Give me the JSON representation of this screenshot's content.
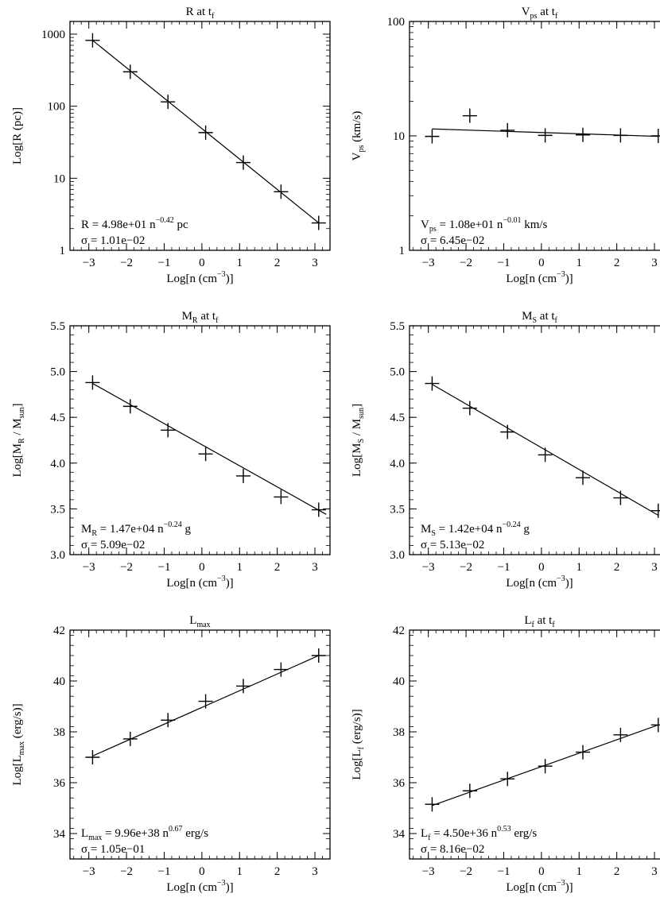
{
  "chart_data": [
    {
      "type": "scatter",
      "title": {
        "main": "R at t",
        "sub": "f"
      },
      "xlabel": {
        "pre": "Log[n (cm",
        "sup": "−3",
        "post": ")]"
      },
      "ylabel": {
        "pre": "Log[R (pc)]"
      },
      "yscale": "log",
      "xlim": [
        -3.5,
        3.4
      ],
      "ylim": [
        1,
        1500
      ],
      "xticks": [
        -3,
        -2,
        -1,
        0,
        1,
        2,
        3
      ],
      "yticks": [
        1,
        10,
        100,
        1000
      ],
      "x": [
        -2.9,
        -1.9,
        -0.9,
        0.1,
        1.1,
        2.1,
        3.1
      ],
      "y": [
        820,
        300,
        115,
        43,
        16.5,
        6.5,
        2.4
      ],
      "fit": {
        "x": [
          -2.9,
          3.1
        ],
        "y": [
          820,
          2.4
        ]
      },
      "annotation": {
        "line1": [
          {
            "t": "R = 4.98e+01  n"
          },
          {
            "t": "−0.42",
            "sup": true
          },
          {
            "t": " pc"
          }
        ],
        "line2": [
          {
            "t": "σ = 1.01e−02"
          }
        ]
      }
    },
    {
      "type": "scatter",
      "title": {
        "main": "V",
        "sub": "ps",
        "post": " at t",
        "sub2": "f"
      },
      "xlabel": {
        "pre": "Log[n (cm",
        "sup": "−3",
        "post": ")]"
      },
      "ylabel": {
        "pre": "V",
        "sub": "ps",
        "post": " (km/s)"
      },
      "yscale": "log",
      "xlim": [
        -3.5,
        3.4
      ],
      "ylim": [
        1,
        100
      ],
      "xticks": [
        -3,
        -2,
        -1,
        0,
        1,
        2,
        3
      ],
      "yticks": [
        1,
        10,
        100
      ],
      "x": [
        -2.9,
        -1.9,
        -0.9,
        0.1,
        1.1,
        2.1,
        3.1
      ],
      "y": [
        9.9,
        15.0,
        11.2,
        10.1,
        10.2,
        10.1,
        10.0
      ],
      "fit": {
        "x": [
          -2.9,
          3.1
        ],
        "y": [
          11.5,
          9.9
        ]
      },
      "annotation": {
        "line1": [
          {
            "t": "V"
          },
          {
            "t": "ps",
            "sub": true
          },
          {
            "t": " = 1.08e+01  n"
          },
          {
            "t": "−0.01",
            "sup": true
          },
          {
            "t": " km/s"
          }
        ],
        "line2": [
          {
            "t": "σ = 6.45e−02"
          }
        ]
      }
    },
    {
      "type": "scatter",
      "title": {
        "main": "M",
        "sub": "R",
        "post": " at t",
        "sub2": "f"
      },
      "xlabel": {
        "pre": "Log[n (cm",
        "sup": "−3",
        "post": ")]"
      },
      "ylabel": {
        "pre": "Log[M",
        "sub": "R",
        "post": " / M",
        "sub2": "sun",
        "post2": "]"
      },
      "yscale": "linear",
      "xlim": [
        -3.5,
        3.4
      ],
      "ylim": [
        3.0,
        5.5
      ],
      "xticks": [
        -3,
        -2,
        -1,
        0,
        1,
        2,
        3
      ],
      "yticks": [
        3.0,
        3.5,
        4.0,
        4.5,
        5.0,
        5.5
      ],
      "ytickfmt": 1,
      "x": [
        -2.9,
        -1.9,
        -0.9,
        0.1,
        1.1,
        2.1,
        3.1
      ],
      "y": [
        4.88,
        4.62,
        4.36,
        4.1,
        3.86,
        3.63,
        3.49
      ],
      "fit": {
        "x": [
          -2.9,
          3.3
        ],
        "y": [
          4.87,
          3.44
        ]
      },
      "annotation": {
        "line1": [
          {
            "t": "M"
          },
          {
            "t": "R",
            "sub": true
          },
          {
            "t": " = 1.47e+04  n"
          },
          {
            "t": "−0.24",
            "sup": true
          },
          {
            "t": " g"
          }
        ],
        "line2": [
          {
            "t": "σ = 5.09e−02"
          }
        ]
      }
    },
    {
      "type": "scatter",
      "title": {
        "main": "M",
        "sub": "S",
        "post": " at t",
        "sub2": "f"
      },
      "xlabel": {
        "pre": "Log[n (cm",
        "sup": "−3",
        "post": ")]"
      },
      "ylabel": {
        "pre": "Log[M",
        "sub": "S",
        "post": " / M",
        "sub2": "sun",
        "post2": "]"
      },
      "yscale": "linear",
      "xlim": [
        -3.5,
        3.4
      ],
      "ylim": [
        3.0,
        5.5
      ],
      "xticks": [
        -3,
        -2,
        -1,
        0,
        1,
        2,
        3
      ],
      "yticks": [
        3.0,
        3.5,
        4.0,
        4.5,
        5.0,
        5.5
      ],
      "ytickfmt": 1,
      "x": [
        -2.9,
        -1.9,
        -0.9,
        0.1,
        1.1,
        2.1,
        3.1
      ],
      "y": [
        4.87,
        4.6,
        4.34,
        4.09,
        3.84,
        3.62,
        3.48
      ],
      "fit": {
        "x": [
          -2.9,
          3.1
        ],
        "y": [
          4.86,
          3.43
        ]
      },
      "annotation": {
        "line1": [
          {
            "t": "M"
          },
          {
            "t": "S",
            "sub": true
          },
          {
            "t": " = 1.42e+04  n"
          },
          {
            "t": "−0.24",
            "sup": true
          },
          {
            "t": " g"
          }
        ],
        "line2": [
          {
            "t": "σ = 5.13e−02"
          }
        ]
      }
    },
    {
      "type": "scatter",
      "title": {
        "main": "L",
        "sub": "max"
      },
      "xlabel": {
        "pre": "Log[n (cm",
        "sup": "−3",
        "post": ")]"
      },
      "ylabel": {
        "pre": "Log[L",
        "sub": "max",
        "post": " (erg/s)]"
      },
      "yscale": "linear",
      "xlim": [
        -3.5,
        3.4
      ],
      "ylim": [
        33,
        42
      ],
      "xticks": [
        -3,
        -2,
        -1,
        0,
        1,
        2,
        3
      ],
      "yticks": [
        34,
        36,
        38,
        40,
        42
      ],
      "x": [
        -2.9,
        -1.9,
        -0.9,
        0.1,
        1.1,
        2.1,
        3.1
      ],
      "y": [
        37.0,
        37.72,
        38.46,
        39.2,
        39.8,
        40.45,
        41.0
      ],
      "fit": {
        "x": [
          -2.9,
          3.1
        ],
        "y": [
          37.05,
          41.0
        ]
      },
      "annotation": {
        "line1": [
          {
            "t": "L"
          },
          {
            "t": "max",
            "sub": true
          },
          {
            "t": " = 9.96e+38  n"
          },
          {
            "t": "0.67",
            "sup": true
          },
          {
            "t": " erg/s"
          }
        ],
        "line2": [
          {
            "t": "σ = 1.05e−01"
          }
        ]
      }
    },
    {
      "type": "scatter",
      "title": {
        "main": "L",
        "sub": "f",
        "post": " at t",
        "sub2": "f"
      },
      "xlabel": {
        "pre": "Log[n (cm",
        "sup": "−3",
        "post": ")]"
      },
      "ylabel": {
        "pre": "Log[L",
        "sub": "f",
        "post": " (erg/s)]"
      },
      "yscale": "linear",
      "xlim": [
        -3.5,
        3.4
      ],
      "ylim": [
        33,
        42
      ],
      "xticks": [
        -3,
        -2,
        -1,
        0,
        1,
        2,
        3
      ],
      "yticks": [
        34,
        36,
        38,
        40,
        42
      ],
      "x": [
        -2.9,
        -1.9,
        -0.9,
        0.1,
        1.1,
        2.1,
        3.1
      ],
      "y": [
        35.15,
        35.68,
        36.15,
        36.65,
        37.2,
        37.88,
        38.27
      ],
      "fit": {
        "x": [
          -2.9,
          3.1
        ],
        "y": [
          35.1,
          38.27
        ]
      },
      "annotation": {
        "line1": [
          {
            "t": "L"
          },
          {
            "t": "f",
            "sub": true
          },
          {
            "t": " = 4.50e+36  n"
          },
          {
            "t": "0.53",
            "sup": true
          },
          {
            "t": " erg/s"
          }
        ],
        "line2": [
          {
            "t": "σ = 8.16e−02"
          }
        ]
      }
    }
  ]
}
